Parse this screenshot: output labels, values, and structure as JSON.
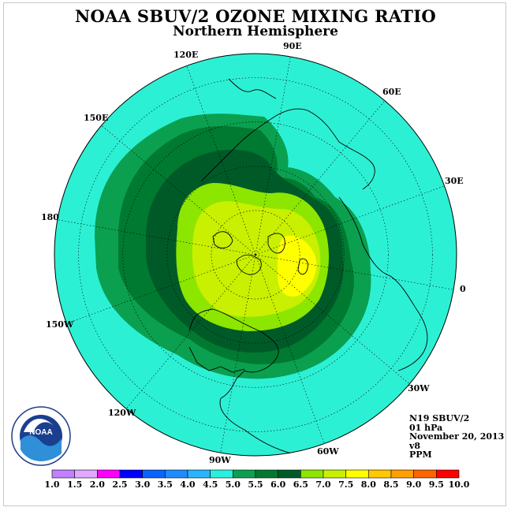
{
  "title": "NOAA SBUV/2 OZONE MIXING RATIO",
  "subtitle": "Northern Hemisphere",
  "longitude_labels": [
    {
      "text": "90E"
    },
    {
      "text": "60E"
    },
    {
      "text": "30E"
    },
    {
      "text": "0"
    },
    {
      "text": "30W"
    },
    {
      "text": "60W"
    },
    {
      "text": "90W"
    },
    {
      "text": "120W"
    },
    {
      "text": "150W"
    },
    {
      "text": "180"
    },
    {
      "text": "150E"
    },
    {
      "text": "120E"
    }
  ],
  "info": {
    "instrument": "N19 SBUV/2",
    "level": "01 hPa",
    "date": "November 20, 2013",
    "version": "v8",
    "units": "PPM"
  },
  "colorbar": {
    "ticks": [
      "1.0",
      "1.5",
      "2.0",
      "2.5",
      "3.0",
      "3.5",
      "4.0",
      "4.5",
      "5.0",
      "5.5",
      "6.0",
      "6.5",
      "7.0",
      "7.5",
      "8.0",
      "8.5",
      "9.0",
      "9.5",
      "10.0"
    ],
    "colors": [
      "#c080ff",
      "#e0a8ff",
      "#ff00ff",
      "#0000ff",
      "#0a64ff",
      "#1e8cff",
      "#28b4ff",
      "#28f0dc",
      "#0aa050",
      "#007a30",
      "#005a28",
      "#8ce600",
      "#c8f000",
      "#ffff00",
      "#ffc800",
      "#ffa000",
      "#ff6400",
      "#ff0000",
      "#8b5a3c"
    ]
  },
  "colors": {
    "background_ozone": "#2cf0d4",
    "level_5_0": "#0aa050",
    "level_5_5": "#007a30",
    "level_6_0": "#005a28",
    "level_6_5": "#8ce600",
    "level_7_0": "#c8f000",
    "level_7_5": "#ffff00"
  },
  "logo": {
    "text": "NOAA"
  }
}
